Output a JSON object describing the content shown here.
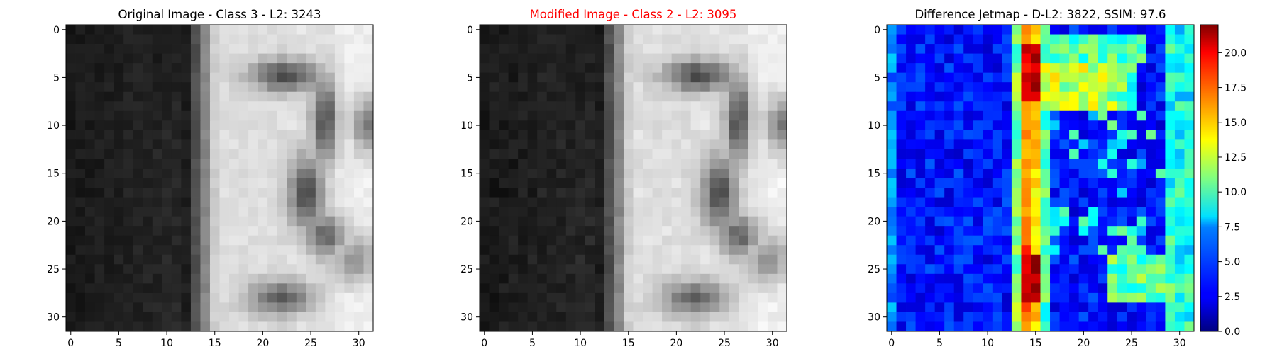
{
  "figure": {
    "panels": [
      {
        "key": "original",
        "title": "Original Image - Class 3 - L2: 3243",
        "title_color": "#000000",
        "colormap": "gray"
      },
      {
        "key": "modified",
        "title": "Modified Image - Class 2 - L2: 3095",
        "title_color": "#ff0000",
        "colormap": "gray"
      },
      {
        "key": "difference",
        "title": "Difference Jetmap - D-L2: 3822, SSIM: 97.6",
        "title_color": "#000000",
        "colormap": "jet"
      }
    ],
    "ticks": [
      "0",
      "5",
      "10",
      "15",
      "20",
      "25",
      "30"
    ],
    "colorbar_ticks": [
      "0.0",
      "2.5",
      "5.0",
      "7.5",
      "10.0",
      "12.5",
      "15.0",
      "17.5",
      "20.0"
    ]
  },
  "chart_data": [
    {
      "type": "heatmap",
      "title": "Original Image - Class 3 - L2: 3243",
      "colormap": "gray",
      "grid_size": [
        32,
        32
      ],
      "xlim": [
        -0.5,
        31.5
      ],
      "ylim": [
        31.5,
        -0.5
      ],
      "x_ticks": [
        0,
        5,
        10,
        15,
        20,
        25,
        30
      ],
      "y_ticks": [
        0,
        5,
        10,
        15,
        20,
        25,
        30
      ],
      "description": "Grayscale 32x32 image: dark left region (cols 0-13), sharp bright band at cols 14-16, light right half with dark curved strokes near cols 20-28 forming a digit-like shape."
    },
    {
      "type": "heatmap",
      "title": "Modified Image - Class 2 - L2: 3095",
      "colormap": "gray",
      "grid_size": [
        32,
        32
      ],
      "xlim": [
        -0.5,
        31.5
      ],
      "ylim": [
        31.5,
        -0.5
      ],
      "x_ticks": [
        0,
        5,
        10,
        15,
        20,
        25,
        30
      ],
      "y_ticks": [
        0,
        5,
        10,
        15,
        20,
        25,
        30
      ],
      "description": "Nearly identical to the original with small pixel perturbations."
    },
    {
      "type": "heatmap",
      "title": "Difference Jetmap - D-L2: 3822, SSIM: 97.6",
      "colormap": "jet",
      "grid_size": [
        32,
        32
      ],
      "xlim": [
        -0.5,
        31.5
      ],
      "ylim": [
        31.5,
        -0.5
      ],
      "x_ticks": [
        0,
        5,
        10,
        15,
        20,
        25,
        30
      ],
      "y_ticks": [
        0,
        5,
        10,
        15,
        20,
        25,
        30
      ],
      "colorbar": {
        "min": 0.0,
        "max": 22.0,
        "ticks": [
          0.0,
          2.5,
          5.0,
          7.5,
          10.0,
          12.5,
          15.0,
          17.5,
          20.0
        ]
      },
      "description": "Largest differences (up to ~22) in a vertical band at cols 14-15; moderate values (10-15) along rows 5-8 cols 16-25 and rows 24-28 cols 24-29; low values elsewhere."
    }
  ]
}
